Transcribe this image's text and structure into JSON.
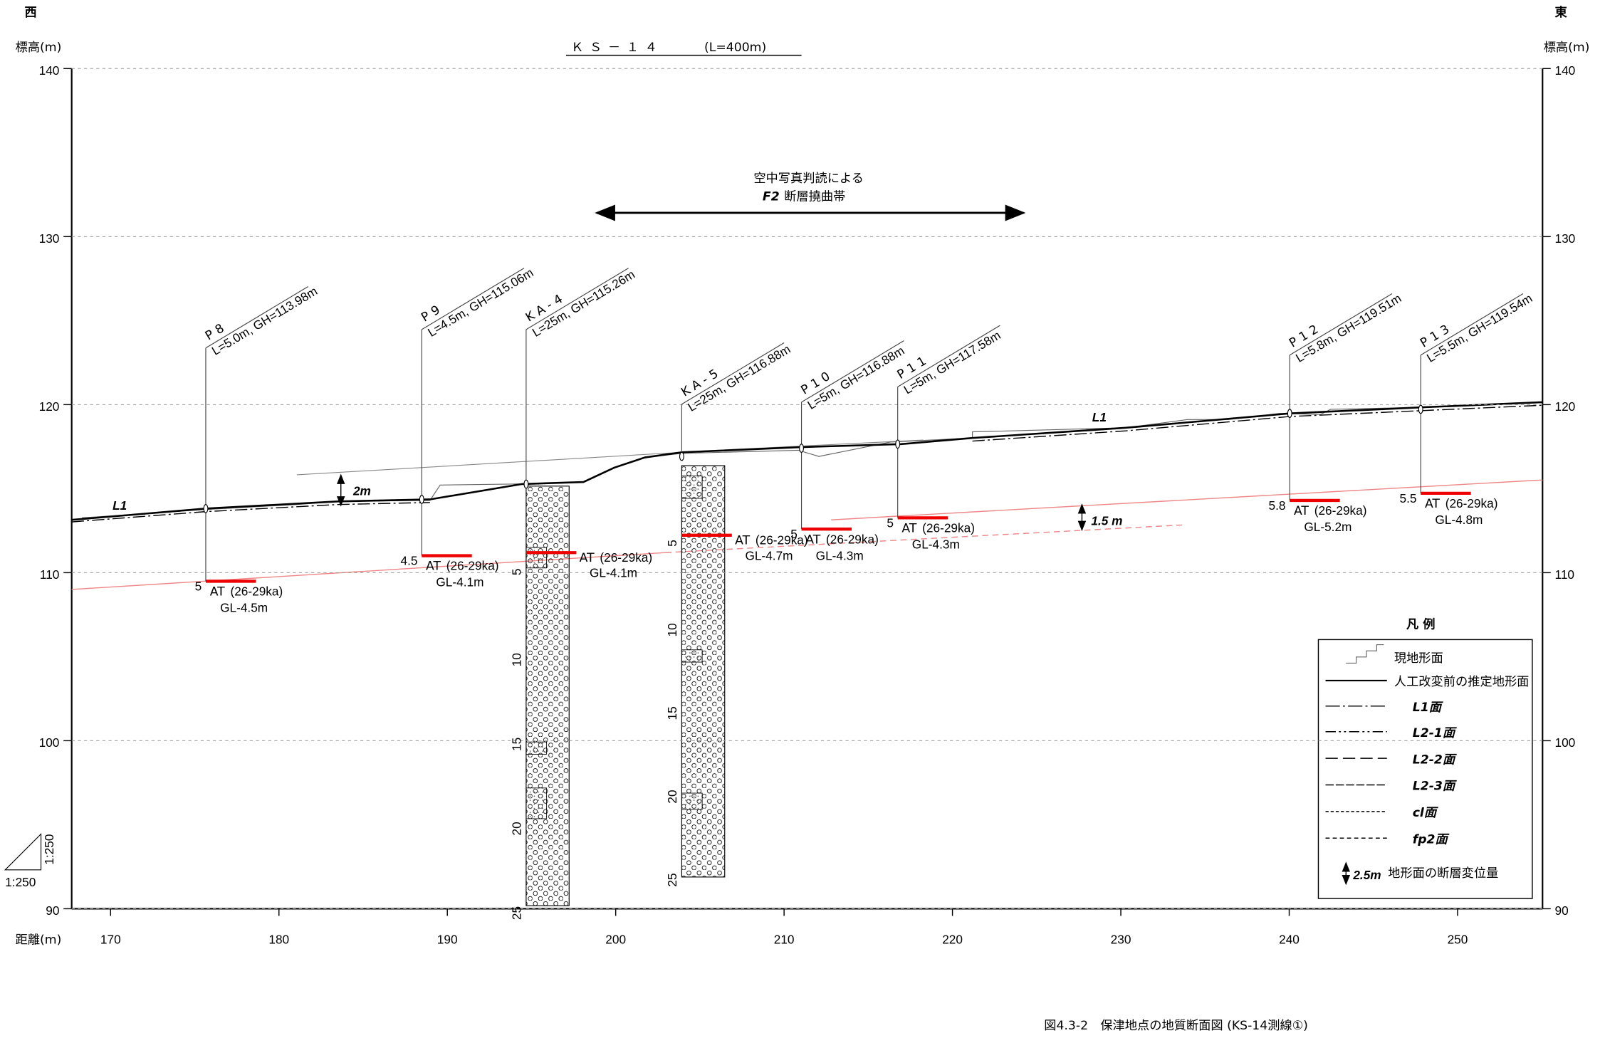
{
  "header": {
    "west": "西",
    "east": "東",
    "title": "ＫＳ－１４",
    "title_length": "(L=400m)"
  },
  "axes": {
    "left_label": "標高(m)",
    "right_label": "標高(m)",
    "x_label": "距離(m)",
    "y_ticks": [
      "140",
      "130",
      "120",
      "110",
      "100",
      "90"
    ],
    "x_ticks": [
      "170",
      "180",
      "190",
      "200",
      "210",
      "220",
      "230",
      "240",
      "250"
    ]
  },
  "annotation": {
    "line1": "空中写真判読による",
    "fault": "F2",
    "line2": "断層撓曲帯"
  },
  "surface_labels": [
    "L1",
    "L1"
  ],
  "displacements": [
    "2m",
    "1.5 m"
  ],
  "boreholes": [
    {
      "name": "P8",
      "info": "L=5.0m, GH=113.98m",
      "depth": "5",
      "marker": "AT",
      "age": "(26-29ka)",
      "gl": "GL-4.5m"
    },
    {
      "name": "P9",
      "info": "L=4.5m, GH=115.06m",
      "depth": "4.5",
      "marker": "AT",
      "age": "(26-29ka)",
      "gl": "GL-4.1m"
    },
    {
      "name": "KA-4",
      "info": "L=25m, GH=115.26m",
      "marker": "AT",
      "age": "(26-29ka)",
      "gl": "GL-4.1m",
      "depth_ticks": [
        "5",
        "10",
        "15",
        "20",
        "25"
      ]
    },
    {
      "name": "KA-5",
      "info": "L=25m, GH=116.88m",
      "marker": "AT",
      "age": "(26-29ka)",
      "gl": "GL-4.7m",
      "depth_ticks": [
        "5",
        "10",
        "15",
        "20",
        "25"
      ]
    },
    {
      "name": "P10",
      "info": "L=5m, GH=116.88m",
      "depth": "5",
      "marker": "AT",
      "age": "(26-29ka)",
      "gl": "GL-4.3m"
    },
    {
      "name": "P11",
      "info": "L=5m, GH=117.58m",
      "depth": "5",
      "marker": "AT",
      "age": "(26-29ka)",
      "gl": "GL-4.3m"
    },
    {
      "name": "P12",
      "info": "L=5.8m, GH=119.51m",
      "depth": "5.8",
      "marker": "AT",
      "age": "(26-29ka)",
      "gl": "GL-5.2m"
    },
    {
      "name": "P13",
      "info": "L=5.5m, GH=119.54m",
      "depth": "5.5",
      "marker": "AT",
      "age": "(26-29ka)",
      "gl": "GL-4.8m"
    }
  ],
  "legend": {
    "title": "凡 例",
    "items": [
      "現地形面",
      "人工改変前の推定地形面",
      "L1面",
      "L2-1面",
      "L2-2面",
      "L2-3面",
      "cl面",
      "fp2面"
    ],
    "displacement_sample": "2.5m",
    "displacement_text": "地形面の断層変位量"
  },
  "scale": {
    "horizontal": "1:250",
    "vertical": "1:250"
  },
  "caption": "図4.3-2　保津地点の地質断面図 (KS-14測線①)"
}
